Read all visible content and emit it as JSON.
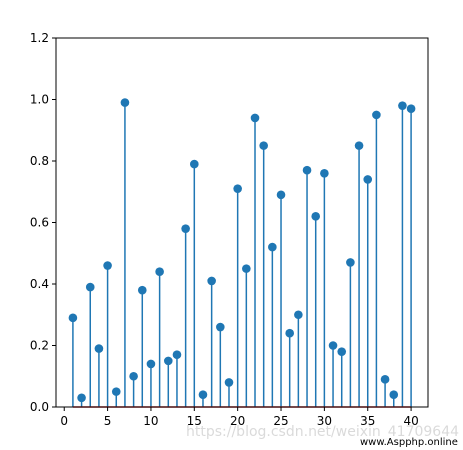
{
  "chart_data": {
    "type": "stem",
    "x": [
      1,
      2,
      3,
      4,
      5,
      6,
      7,
      8,
      9,
      10,
      11,
      12,
      13,
      14,
      15,
      16,
      17,
      18,
      19,
      20,
      21,
      22,
      23,
      24,
      25,
      26,
      27,
      28,
      29,
      30,
      31,
      32,
      33,
      34,
      35,
      36,
      37,
      38,
      39,
      40
    ],
    "values": [
      0.29,
      0.03,
      0.39,
      0.19,
      0.46,
      0.05,
      0.99,
      0.1,
      0.38,
      0.14,
      0.44,
      0.15,
      0.17,
      0.58,
      0.79,
      0.04,
      0.41,
      0.26,
      0.08,
      0.71,
      0.45,
      0.94,
      0.85,
      0.52,
      0.69,
      0.24,
      0.3,
      0.77,
      0.62,
      0.76,
      0.2,
      0.18,
      0.47,
      0.85,
      0.74,
      0.95,
      0.09,
      0.04,
      0.98,
      0.97
    ],
    "xlim": [
      -0.95,
      41.95
    ],
    "ylim": [
      0,
      1.2
    ],
    "xticks": [
      0,
      5,
      10,
      15,
      20,
      25,
      30,
      35,
      40
    ],
    "yticks": [
      0.0,
      0.2,
      0.4,
      0.6,
      0.8,
      1.0,
      1.2
    ],
    "xtick_labels": [
      "0",
      "5",
      "10",
      "15",
      "20",
      "25",
      "30",
      "35",
      "40"
    ],
    "ytick_labels": [
      "0.0",
      "0.2",
      "0.4",
      "0.6",
      "0.8",
      "1.0",
      "1.2"
    ],
    "title": "",
    "xlabel": "",
    "ylabel": "",
    "grid": false,
    "colors": {
      "stem": "#1f77b4",
      "marker": "#1f77b4",
      "axes": "#000000"
    }
  },
  "watermarks": {
    "blog": "https://blog.csdn.net/weixin_41709644",
    "site": "www.Aspphp.online"
  }
}
